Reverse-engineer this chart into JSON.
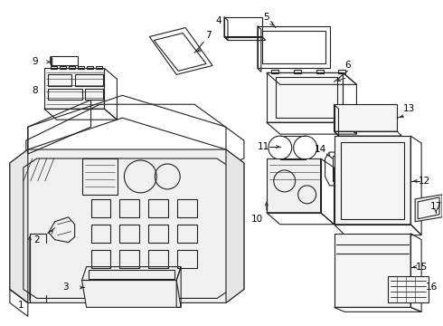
{
  "background_color": "#ffffff",
  "line_color": "#222222",
  "label_color": "#000000",
  "figsize": [
    4.9,
    3.6
  ],
  "dpi": 100,
  "lw": 0.8,
  "fs": 7.5
}
